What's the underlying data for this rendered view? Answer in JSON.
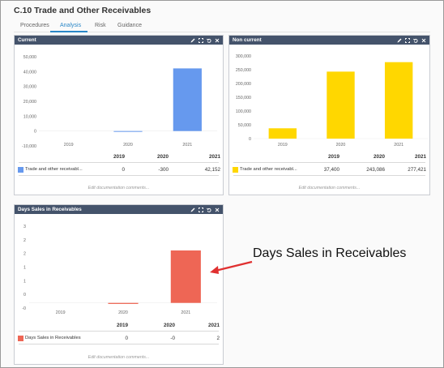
{
  "page": {
    "title": "C.10 Trade and Other Receivables"
  },
  "tabs": [
    {
      "label": "Procedures"
    },
    {
      "label": "Analysis"
    },
    {
      "label": "Risk"
    },
    {
      "label": "Guidance"
    }
  ],
  "panels": {
    "current": {
      "title": "Current",
      "years": [
        "2019",
        "2020",
        "2021"
      ],
      "row_label": "Trade and other receivabl...",
      "row_values": [
        "0",
        "-300",
        "42,152"
      ],
      "edit_text": "Edit documentation comments...",
      "color": "#6699ee"
    },
    "noncurrent": {
      "title": "Non current",
      "years": [
        "2019",
        "2020",
        "2021"
      ],
      "row_label": "Trade and other receivabl...",
      "row_values": [
        "37,400",
        "243,086",
        "277,421"
      ],
      "edit_text": "Edit documentation comments...",
      "color": "#ffd700"
    },
    "dsr": {
      "title": "Days Sales in Receivables",
      "years": [
        "2019",
        "2020",
        "2021"
      ],
      "row_label": "Days Sales in Receivables",
      "row_values": [
        "0",
        "-0",
        "2"
      ],
      "edit_text": "Edit documentation comments...",
      "color": "#ee6655"
    }
  },
  "callout": {
    "text": "Days Sales in Receivables",
    "color": "#e03030"
  },
  "icons": [
    "pencil-icon",
    "expand-icon",
    "undo-icon",
    "close-icon"
  ],
  "chart_data": [
    {
      "type": "bar",
      "categories": [
        "2019",
        "2020",
        "2021"
      ],
      "series": [
        {
          "name": "Trade and other receivabl...",
          "values": [
            0,
            -300,
            42152
          ]
        }
      ],
      "yticks": [
        "50,000",
        "40,000",
        "30,000",
        "20,000",
        "10,000",
        "0",
        "-10,000"
      ],
      "ylim": [
        -10000,
        50000
      ],
      "grid": false
    },
    {
      "type": "bar",
      "categories": [
        "2019",
        "2020",
        "2021"
      ],
      "series": [
        {
          "name": "Trade and other receivabl...",
          "values": [
            37400,
            243086,
            277421
          ]
        }
      ],
      "yticks": [
        "300,000",
        "250,000",
        "200,000",
        "150,000",
        "100,000",
        "50,000",
        "0"
      ],
      "ylim": [
        0,
        300000
      ],
      "grid": false
    },
    {
      "type": "bar",
      "categories": [
        "2019",
        "2020",
        "2021"
      ],
      "series": [
        {
          "name": "Days Sales in Receivables",
          "values": [
            0,
            -0.04,
            2.05
          ]
        }
      ],
      "yticks": [
        "3",
        "2",
        "2",
        "1",
        "1",
        "0",
        "-0"
      ],
      "ylim": [
        -0.2,
        3
      ],
      "grid": false
    }
  ]
}
